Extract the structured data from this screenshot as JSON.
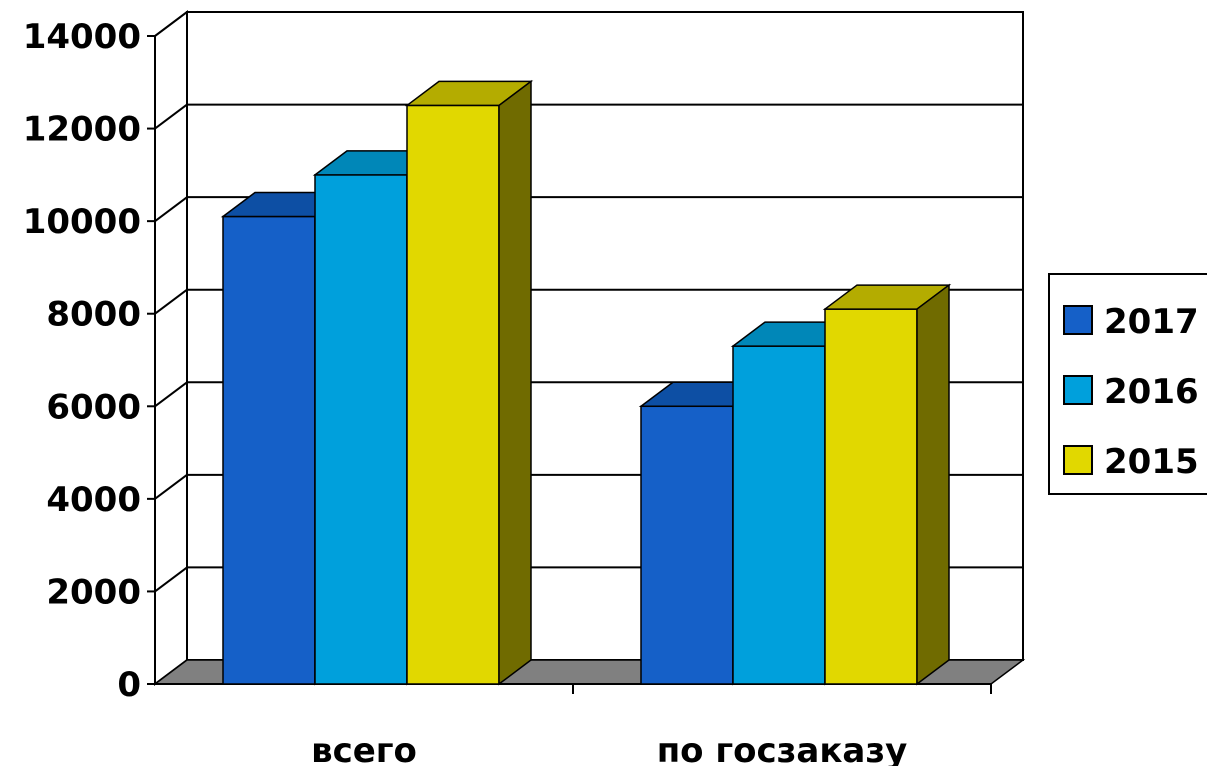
{
  "chart_data": {
    "type": "bar",
    "categories": [
      "всего",
      "по госзаказу"
    ],
    "series": [
      {
        "name": "2017",
        "values": [
          10100,
          6000
        ],
        "color": "#1560C8",
        "top_color": "#0D4FA4",
        "side_color": "#0B3F80"
      },
      {
        "name": "2016",
        "values": [
          11000,
          7300
        ],
        "color": "#00A0DC",
        "top_color": "#0087B8",
        "side_color": "#006F96"
      },
      {
        "name": "2015",
        "values": [
          12500,
          8100
        ],
        "color": "#E1D800",
        "top_color": "#B4AC00",
        "side_color": "#706B00"
      }
    ],
    "ylim": [
      0,
      14000
    ],
    "yticks": [
      "0",
      "2000",
      "4000",
      "6000",
      "8000",
      "10000",
      "12000",
      "14000"
    ],
    "grid": true,
    "legend": "right",
    "title": "",
    "xlabel": "",
    "ylabel": ""
  }
}
